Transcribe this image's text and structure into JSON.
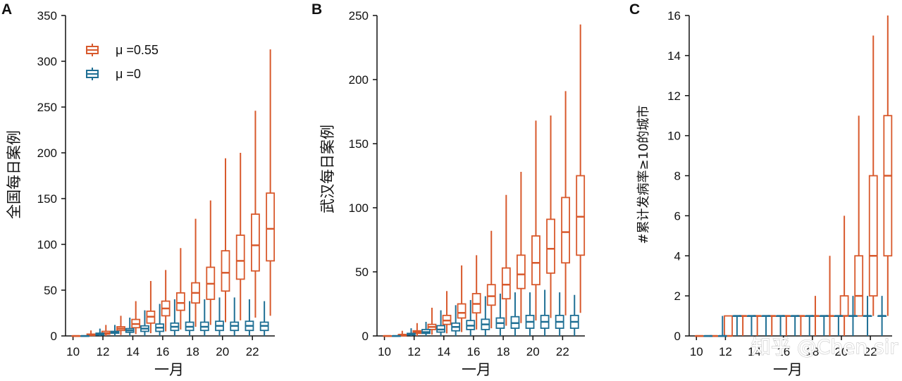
{
  "colors": {
    "orange": "#d8592c",
    "blue": "#1f6f94",
    "axis": "#111111"
  },
  "legend": {
    "items": [
      {
        "label": "μ =0.55",
        "series": "mu055"
      },
      {
        "label": "μ =0",
        "series": "mu0"
      }
    ]
  },
  "watermark": "知乎 @Chen sir",
  "chart_data": [
    {
      "panel": "A",
      "type": "box",
      "xlabel": "一月",
      "ylabel": "全国每日案例",
      "ylim": [
        0,
        350
      ],
      "yticks": [
        0,
        50,
        100,
        150,
        200,
        250,
        300,
        350
      ],
      "xlim": [
        9.5,
        23.5
      ],
      "xticks": [
        10,
        12,
        14,
        16,
        18,
        20,
        22
      ],
      "series": [
        {
          "name": "μ =0.55",
          "key": "mu055",
          "boxes": [
            {
              "x": 10.2,
              "min": 0,
              "q1": 0,
              "median": 0,
              "q3": 0,
              "max": 0
            },
            {
              "x": 11.2,
              "min": 0,
              "q1": 0.5,
              "median": 1,
              "q3": 2,
              "max": 6
            },
            {
              "x": 12.2,
              "min": 0,
              "q1": 2,
              "median": 3,
              "q3": 5,
              "max": 12
            },
            {
              "x": 13.2,
              "min": 1,
              "q1": 6,
              "median": 8,
              "q3": 10,
              "max": 22
            },
            {
              "x": 14.2,
              "min": 2,
              "q1": 9,
              "median": 13,
              "q3": 18,
              "max": 38
            },
            {
              "x": 15.2,
              "min": 3,
              "q1": 14,
              "median": 21,
              "q3": 27,
              "max": 60
            },
            {
              "x": 16.2,
              "min": 5,
              "q1": 22,
              "median": 30,
              "q3": 38,
              "max": 72
            },
            {
              "x": 17.2,
              "min": 7,
              "q1": 28,
              "median": 36,
              "q3": 47,
              "max": 96
            },
            {
              "x": 18.2,
              "min": 10,
              "q1": 36,
              "median": 47,
              "q3": 58,
              "max": 128
            },
            {
              "x": 19.2,
              "min": 12,
              "q1": 40,
              "median": 57,
              "q3": 75,
              "max": 148
            },
            {
              "x": 20.2,
              "min": 15,
              "q1": 49,
              "median": 69,
              "q3": 93,
              "max": 194
            },
            {
              "x": 21.2,
              "min": 17,
              "q1": 62,
              "median": 82,
              "q3": 110,
              "max": 200
            },
            {
              "x": 22.2,
              "min": 20,
              "q1": 71,
              "median": 99,
              "q3": 133,
              "max": 246
            },
            {
              "x": 23.2,
              "min": 22,
              "q1": 82,
              "median": 117,
              "q3": 156,
              "max": 313
            }
          ]
        },
        {
          "name": "μ =0",
          "key": "mu0",
          "boxes": [
            {
              "x": 10.8,
              "min": 0,
              "q1": 0,
              "median": 0,
              "q3": 0,
              "max": 0
            },
            {
              "x": 11.8,
              "min": 0,
              "q1": 1,
              "median": 2,
              "q3": 3,
              "max": 8
            },
            {
              "x": 12.8,
              "min": 0,
              "q1": 3,
              "median": 4,
              "q3": 5,
              "max": 12
            },
            {
              "x": 13.8,
              "min": 0,
              "q1": 4,
              "median": 6,
              "q3": 8,
              "max": 20
            },
            {
              "x": 14.8,
              "min": 0,
              "q1": 5,
              "median": 8,
              "q3": 11,
              "max": 28
            },
            {
              "x": 15.8,
              "min": 0,
              "q1": 5,
              "median": 9,
              "q3": 13,
              "max": 35
            },
            {
              "x": 16.8,
              "min": 0,
              "q1": 6,
              "median": 10,
              "q3": 14,
              "max": 40
            },
            {
              "x": 17.8,
              "min": 0,
              "q1": 6,
              "median": 10,
              "q3": 15,
              "max": 38
            },
            {
              "x": 18.8,
              "min": 0,
              "q1": 6,
              "median": 10,
              "q3": 15,
              "max": 40
            },
            {
              "x": 19.8,
              "min": 0,
              "q1": 6,
              "median": 11,
              "q3": 16,
              "max": 42
            },
            {
              "x": 20.8,
              "min": 0,
              "q1": 6,
              "median": 11,
              "q3": 15,
              "max": 42
            },
            {
              "x": 21.8,
              "min": 0,
              "q1": 6,
              "median": 11,
              "q3": 16,
              "max": 40
            },
            {
              "x": 22.8,
              "min": 0,
              "q1": 6,
              "median": 11,
              "q3": 15,
              "max": 38
            }
          ]
        }
      ]
    },
    {
      "panel": "B",
      "type": "box",
      "xlabel": "一月",
      "ylabel": "武汉每日案例",
      "ylim": [
        0,
        250
      ],
      "yticks": [
        0,
        50,
        100,
        150,
        200,
        250
      ],
      "xlim": [
        9.5,
        23.5
      ],
      "xticks": [
        10,
        12,
        14,
        16,
        18,
        20,
        22
      ],
      "series": [
        {
          "name": "μ =0.55",
          "key": "mu055",
          "boxes": [
            {
              "x": 10.2,
              "min": 0,
              "q1": 0,
              "median": 0,
              "q3": 0,
              "max": 0
            },
            {
              "x": 11.2,
              "min": 0,
              "q1": 0,
              "median": 1,
              "q3": 1,
              "max": 4
            },
            {
              "x": 12.2,
              "min": 0,
              "q1": 2,
              "median": 3,
              "q3": 4,
              "max": 10
            },
            {
              "x": 13.2,
              "min": 1,
              "q1": 5,
              "median": 7,
              "q3": 9,
              "max": 22
            },
            {
              "x": 14.2,
              "min": 2,
              "q1": 9,
              "median": 12,
              "q3": 16,
              "max": 35
            },
            {
              "x": 15.2,
              "min": 3,
              "q1": 14,
              "median": 18,
              "q3": 25,
              "max": 55
            },
            {
              "x": 16.2,
              "min": 5,
              "q1": 18,
              "median": 25,
              "q3": 33,
              "max": 63
            },
            {
              "x": 17.2,
              "min": 6,
              "q1": 24,
              "median": 31,
              "q3": 40,
              "max": 82
            },
            {
              "x": 18.2,
              "min": 8,
              "q1": 29,
              "median": 40,
              "q3": 53,
              "max": 110
            },
            {
              "x": 19.2,
              "min": 10,
              "q1": 37,
              "median": 48,
              "q3": 63,
              "max": 128
            },
            {
              "x": 20.2,
              "min": 12,
              "q1": 40,
              "median": 57,
              "q3": 78,
              "max": 168
            },
            {
              "x": 21.2,
              "min": 14,
              "q1": 49,
              "median": 68,
              "q3": 91,
              "max": 172
            },
            {
              "x": 22.2,
              "min": 16,
              "q1": 57,
              "median": 81,
              "q3": 108,
              "max": 191
            },
            {
              "x": 23.2,
              "min": 18,
              "q1": 63,
              "median": 93,
              "q3": 125,
              "max": 243
            }
          ]
        },
        {
          "name": "μ =0",
          "key": "mu0",
          "boxes": [
            {
              "x": 10.8,
              "min": 0,
              "q1": 0,
              "median": 0,
              "q3": 0,
              "max": 0
            },
            {
              "x": 11.8,
              "min": 0,
              "q1": 1,
              "median": 1,
              "q3": 2,
              "max": 6
            },
            {
              "x": 12.8,
              "min": 0,
              "q1": 2,
              "median": 3,
              "q3": 5,
              "max": 11
            },
            {
              "x": 13.8,
              "min": 0,
              "q1": 3,
              "median": 5,
              "q3": 8,
              "max": 20
            },
            {
              "x": 14.8,
              "min": 0,
              "q1": 4,
              "median": 7,
              "q3": 10,
              "max": 24
            },
            {
              "x": 15.8,
              "min": 0,
              "q1": 5,
              "median": 8,
              "q3": 12,
              "max": 28
            },
            {
              "x": 16.8,
              "min": 0,
              "q1": 5,
              "median": 9,
              "q3": 13,
              "max": 31
            },
            {
              "x": 17.8,
              "min": 0,
              "q1": 6,
              "median": 10,
              "q3": 14,
              "max": 33
            },
            {
              "x": 18.8,
              "min": 0,
              "q1": 6,
              "median": 10,
              "q3": 15,
              "max": 34
            },
            {
              "x": 19.8,
              "min": 0,
              "q1": 6,
              "median": 11,
              "q3": 16,
              "max": 34
            },
            {
              "x": 20.8,
              "min": 0,
              "q1": 6,
              "median": 11,
              "q3": 16,
              "max": 36
            },
            {
              "x": 21.8,
              "min": 0,
              "q1": 6,
              "median": 11,
              "q3": 16,
              "max": 34
            },
            {
              "x": 22.8,
              "min": 0,
              "q1": 6,
              "median": 11,
              "q3": 16,
              "max": 32
            }
          ]
        }
      ]
    },
    {
      "panel": "C",
      "type": "box",
      "xlabel": "一月",
      "ylabel": "#累计发病率≥10的城市",
      "ylim": [
        0,
        16
      ],
      "yticks": [
        0,
        2,
        4,
        6,
        8,
        10,
        12,
        14,
        16
      ],
      "xlim": [
        9.5,
        23.5
      ],
      "xticks": [
        10,
        12,
        14,
        16,
        18,
        20,
        22
      ],
      "series": [
        {
          "name": "μ =0.55",
          "key": "mu055",
          "boxes": [
            {
              "x": 10.2,
              "min": 0,
              "q1": 0,
              "median": 0,
              "q3": 0,
              "max": 0
            },
            {
              "x": 11.2,
              "min": 0,
              "q1": 0,
              "median": 0,
              "q3": 0,
              "max": 0
            },
            {
              "x": 12.2,
              "min": 0,
              "q1": 0,
              "median": 0,
              "q3": 1,
              "max": 1
            },
            {
              "x": 13.2,
              "min": 0,
              "q1": 1,
              "median": 1,
              "q3": 1,
              "max": 1
            },
            {
              "x": 14.2,
              "min": 0,
              "q1": 1,
              "median": 1,
              "q3": 1,
              "max": 1
            },
            {
              "x": 15.2,
              "min": 0,
              "q1": 1,
              "median": 1,
              "q3": 1,
              "max": 1
            },
            {
              "x": 16.2,
              "min": 0,
              "q1": 1,
              "median": 1,
              "q3": 1,
              "max": 1
            },
            {
              "x": 17.2,
              "min": 0,
              "q1": 1,
              "median": 1,
              "q3": 1,
              "max": 1
            },
            {
              "x": 18.2,
              "min": 0,
              "q1": 1,
              "median": 1,
              "q3": 1,
              "max": 2
            },
            {
              "x": 19.2,
              "min": 0,
              "q1": 1,
              "median": 1,
              "q3": 1,
              "max": 4
            },
            {
              "x": 20.2,
              "min": 0,
              "q1": 1,
              "median": 1,
              "q3": 2,
              "max": 6
            },
            {
              "x": 21.2,
              "min": 1,
              "q1": 1,
              "median": 2,
              "q3": 4,
              "max": 11
            },
            {
              "x": 22.2,
              "min": 1,
              "q1": 2,
              "median": 4,
              "q3": 8,
              "max": 15
            },
            {
              "x": 23.2,
              "min": 1,
              "q1": 4,
              "median": 8,
              "q3": 11,
              "max": 16
            }
          ]
        },
        {
          "name": "μ =0",
          "key": "mu0",
          "boxes": [
            {
              "x": 10.8,
              "min": 0,
              "q1": 0,
              "median": 0,
              "q3": 0,
              "max": 0
            },
            {
              "x": 11.8,
              "min": 0,
              "q1": 0,
              "median": 0,
              "q3": 0,
              "max": 1
            },
            {
              "x": 12.8,
              "min": 0,
              "q1": 1,
              "median": 1,
              "q3": 1,
              "max": 1
            },
            {
              "x": 13.8,
              "min": 0,
              "q1": 1,
              "median": 1,
              "q3": 1,
              "max": 1
            },
            {
              "x": 14.8,
              "min": 0,
              "q1": 1,
              "median": 1,
              "q3": 1,
              "max": 1
            },
            {
              "x": 15.8,
              "min": 0,
              "q1": 1,
              "median": 1,
              "q3": 1,
              "max": 1
            },
            {
              "x": 16.8,
              "min": 0,
              "q1": 1,
              "median": 1,
              "q3": 1,
              "max": 1
            },
            {
              "x": 17.8,
              "min": 0,
              "q1": 1,
              "median": 1,
              "q3": 1,
              "max": 1
            },
            {
              "x": 18.8,
              "min": 0,
              "q1": 1,
              "median": 1,
              "q3": 1,
              "max": 1
            },
            {
              "x": 19.8,
              "min": 0,
              "q1": 1,
              "median": 1,
              "q3": 1,
              "max": 1
            },
            {
              "x": 20.8,
              "min": 0,
              "q1": 1,
              "median": 1,
              "q3": 1,
              "max": 2
            },
            {
              "x": 21.8,
              "min": 0,
              "q1": 1,
              "median": 1,
              "q3": 1,
              "max": 2
            },
            {
              "x": 22.8,
              "min": 0,
              "q1": 1,
              "median": 1,
              "q3": 1,
              "max": 2
            }
          ]
        }
      ]
    }
  ]
}
